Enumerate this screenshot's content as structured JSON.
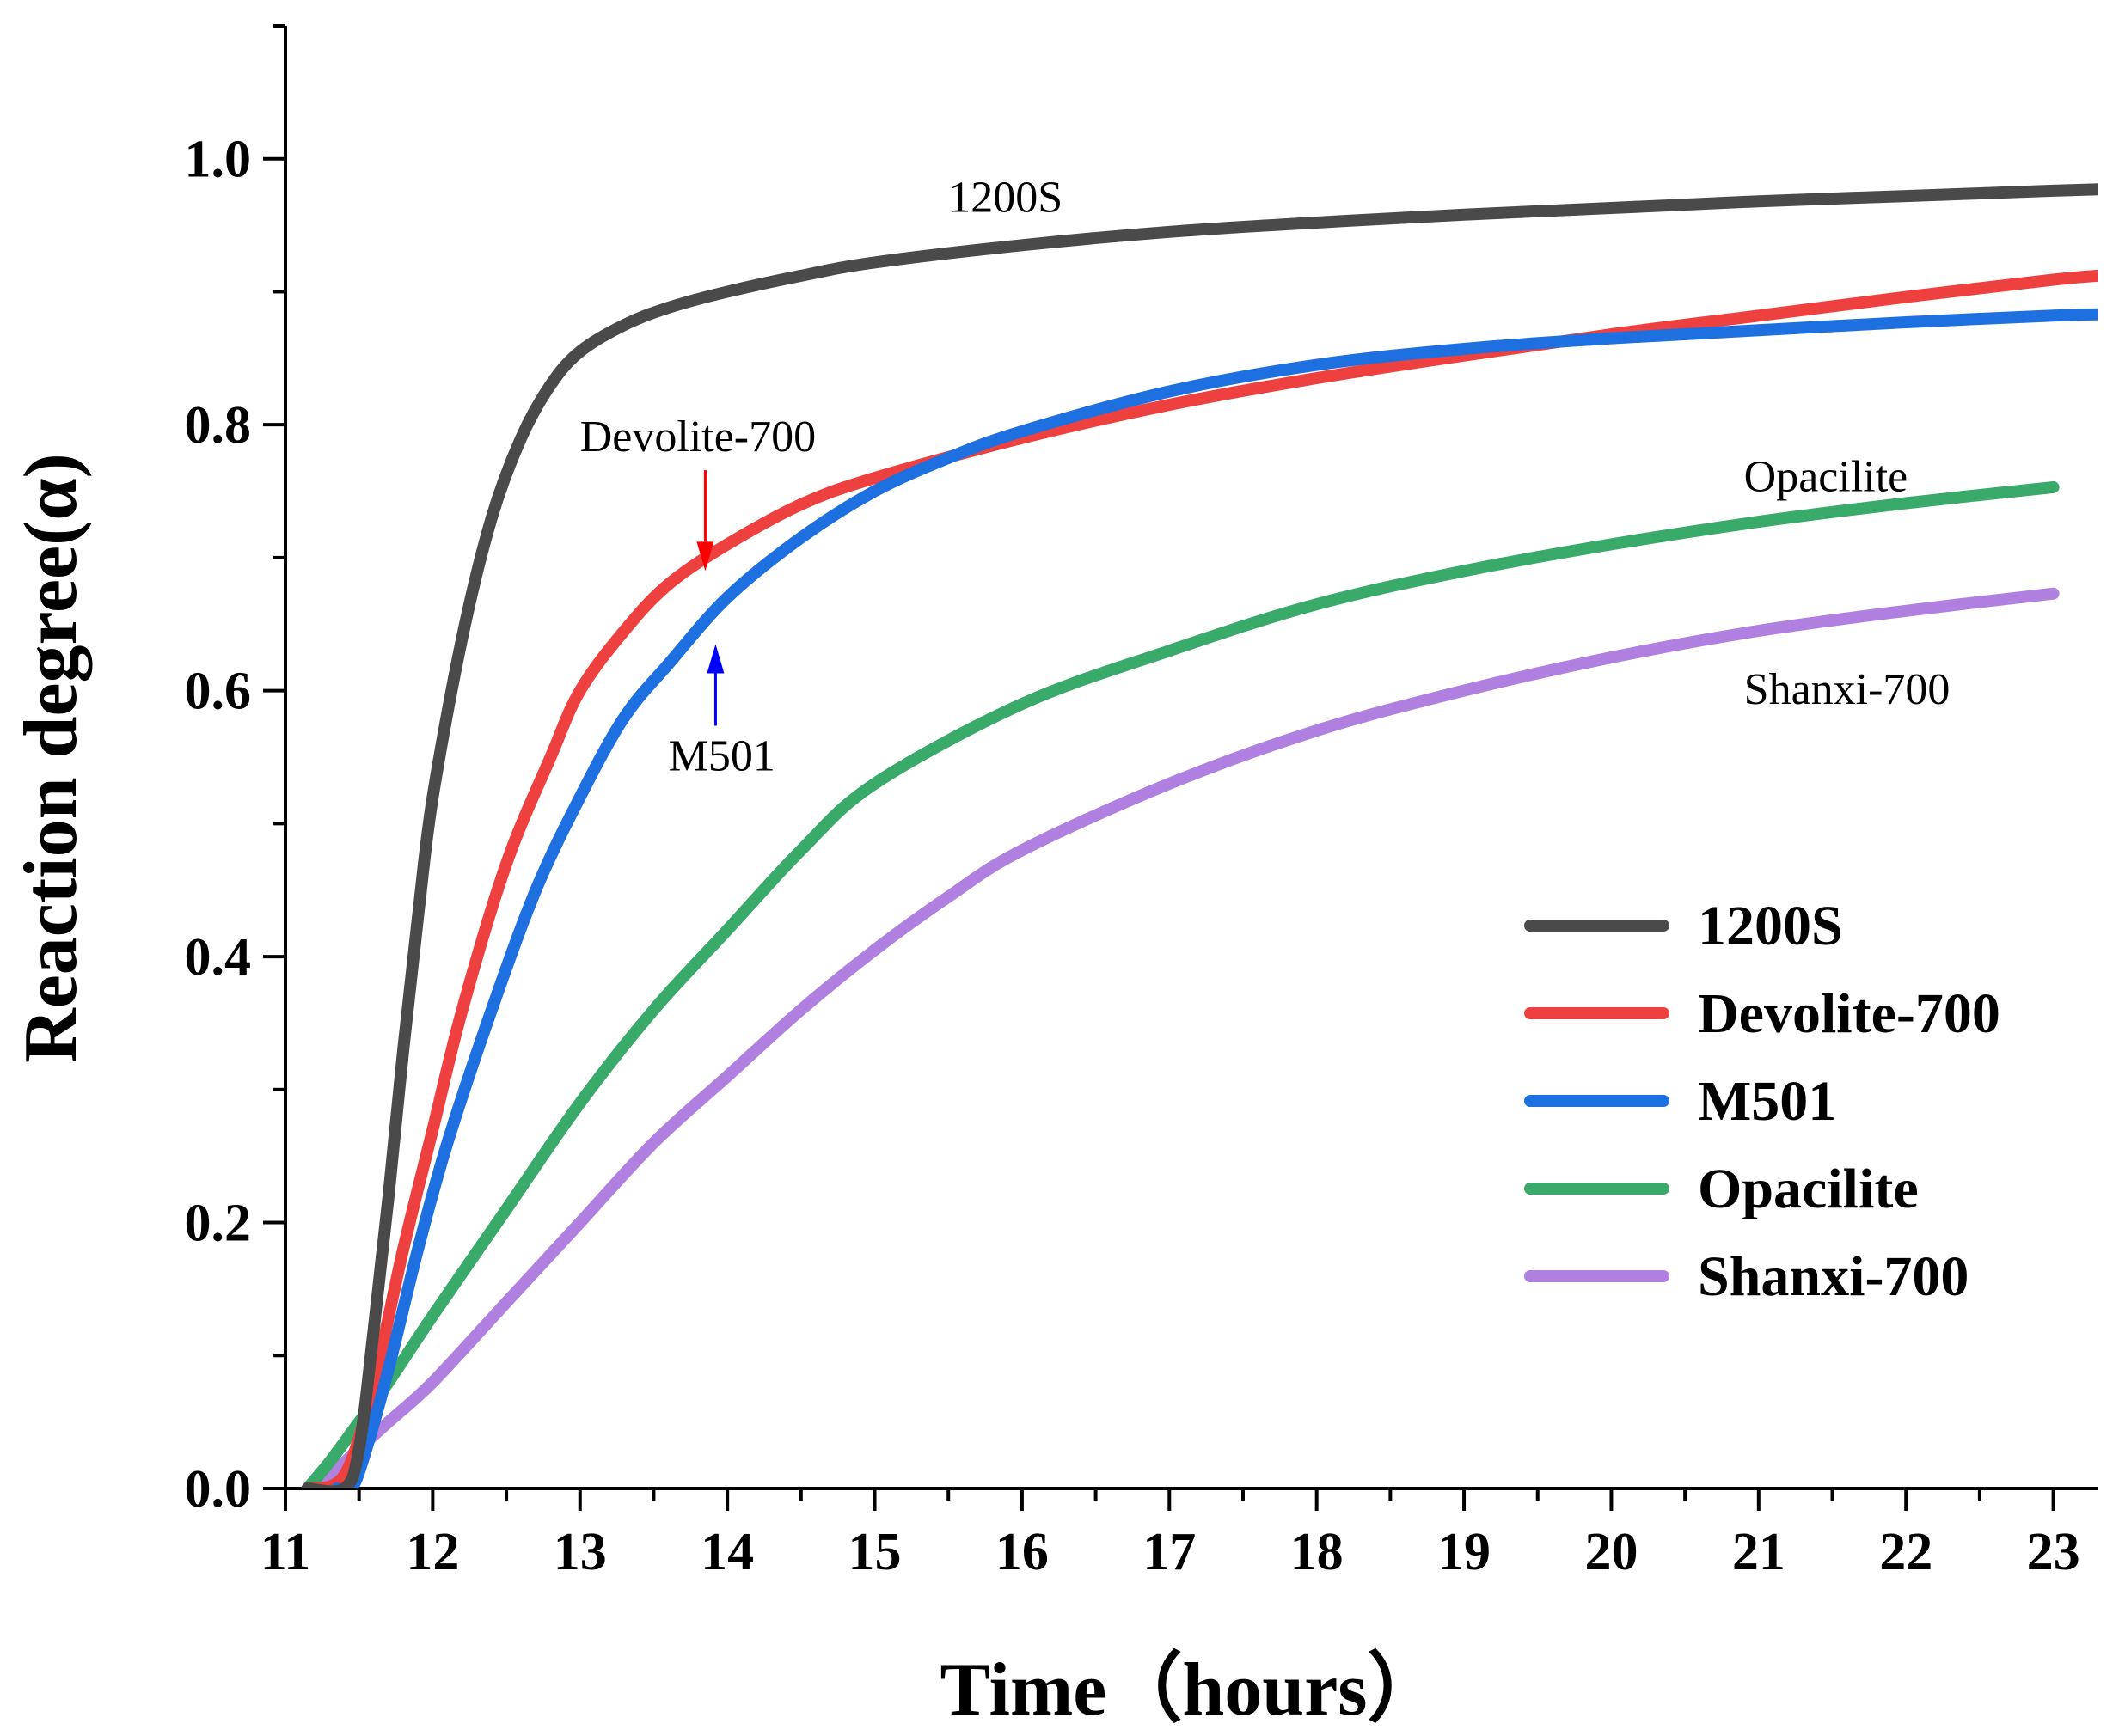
{
  "chart_data": {
    "type": "line",
    "title": "",
    "xlabel": "Time（hours）",
    "ylabel": "Reaction degree(α)",
    "xlim": [
      11,
      23.3
    ],
    "ylim": [
      0,
      1.1
    ],
    "xticks": [
      11,
      12,
      13,
      14,
      15,
      16,
      17,
      18,
      19,
      20,
      21,
      22,
      23
    ],
    "xtick_labels": [
      "11",
      "12",
      "13",
      "14",
      "15",
      "16",
      "17",
      "18",
      "19",
      "20",
      "21",
      "22",
      "23"
    ],
    "yticks": [
      0,
      0.2,
      0.4,
      0.6,
      0.8,
      1.0
    ],
    "ytick_labels": [
      "0.0",
      "0.2",
      "0.4",
      "0.6",
      "0.8",
      "1.0"
    ],
    "grid": false,
    "legend_position": "bottom-right",
    "series": [
      {
        "name": "1200S",
        "color": "#4a4a4a",
        "x": [
          11.15,
          11.4,
          11.5,
          11.6,
          11.7,
          11.8,
          11.9,
          12.0,
          12.2,
          12.4,
          12.6,
          12.8,
          13.0,
          13.3,
          13.6,
          14.0,
          14.5,
          15.0,
          16.0,
          17.0,
          18.0,
          19.0,
          20.0,
          21.0,
          22.0,
          23.0,
          23.3
        ],
        "values": [
          0.0,
          0.0,
          0.03,
          0.12,
          0.22,
          0.33,
          0.43,
          0.52,
          0.64,
          0.73,
          0.79,
          0.83,
          0.855,
          0.875,
          0.888,
          0.9,
          0.912,
          0.922,
          0.935,
          0.945,
          0.952,
          0.958,
          0.963,
          0.968,
          0.972,
          0.976,
          0.977
        ]
      },
      {
        "name": "Devolite-700",
        "color": "#ef4040",
        "x": [
          11.15,
          11.4,
          11.6,
          11.8,
          12.0,
          12.2,
          12.5,
          12.8,
          13.0,
          13.3,
          13.6,
          14.0,
          14.5,
          15.0,
          16.0,
          17.0,
          18.0,
          19.0,
          20.0,
          21.0,
          22.0,
          23.0,
          23.3
        ],
        "values": [
          0.0,
          0.01,
          0.08,
          0.18,
          0.27,
          0.36,
          0.47,
          0.55,
          0.6,
          0.645,
          0.68,
          0.71,
          0.74,
          0.76,
          0.79,
          0.815,
          0.835,
          0.852,
          0.868,
          0.882,
          0.896,
          0.909,
          0.912
        ]
      },
      {
        "name": "M501",
        "color": "#1e6fe0",
        "x": [
          11.35,
          11.45,
          11.55,
          11.7,
          11.9,
          12.1,
          12.4,
          12.7,
          13.0,
          13.3,
          13.6,
          14.0,
          14.5,
          15.0,
          15.5,
          16.0,
          17.0,
          18.0,
          19.0,
          20.0,
          21.0,
          22.0,
          23.0,
          23.3
        ],
        "values": [
          0.0,
          0.0,
          0.03,
          0.09,
          0.18,
          0.26,
          0.36,
          0.45,
          0.52,
          0.58,
          0.62,
          0.67,
          0.715,
          0.75,
          0.775,
          0.795,
          0.825,
          0.845,
          0.857,
          0.865,
          0.871,
          0.877,
          0.882,
          0.883
        ]
      },
      {
        "name": "Opacilite",
        "color": "#3aaa6a",
        "x": [
          11.15,
          11.3,
          11.5,
          11.7,
          12.0,
          12.5,
          13.0,
          13.5,
          14.0,
          14.5,
          15.0,
          16.0,
          17.0,
          18.0,
          19.0,
          20.0,
          21.0,
          22.0,
          23.0
        ],
        "values": [
          0.0,
          0.02,
          0.05,
          0.08,
          0.13,
          0.21,
          0.29,
          0.36,
          0.42,
          0.48,
          0.53,
          0.59,
          0.63,
          0.665,
          0.69,
          0.71,
          0.727,
          0.741,
          0.753
        ]
      },
      {
        "name": "Shanxi-700",
        "color": "#b080e0",
        "x": [
          11.15,
          11.3,
          11.5,
          11.7,
          12.0,
          12.5,
          13.0,
          13.5,
          14.0,
          14.5,
          15.0,
          15.5,
          16.0,
          17.0,
          18.0,
          19.0,
          20.0,
          21.0,
          22.0,
          23.0
        ],
        "values": [
          0.0,
          0.01,
          0.03,
          0.05,
          0.08,
          0.14,
          0.2,
          0.26,
          0.31,
          0.36,
          0.405,
          0.445,
          0.48,
          0.53,
          0.57,
          0.6,
          0.625,
          0.645,
          0.66,
          0.673
        ]
      }
    ],
    "annotations": [
      {
        "label": "1200S",
        "x": 15.5,
        "y": 0.96
      },
      {
        "label": "Devolite-700",
        "x": 13.0,
        "y": 0.78,
        "arrow_to": [
          13.85,
          0.69
        ],
        "arrow_color": "#ff0000"
      },
      {
        "label": "M501",
        "x": 13.6,
        "y": 0.54,
        "arrow_to": [
          13.92,
          0.635
        ],
        "arrow_color": "#0000ff"
      },
      {
        "label": "Opacilite",
        "x": 20.9,
        "y": 0.75
      },
      {
        "label": "Shanxi-700",
        "x": 20.9,
        "y": 0.59
      }
    ]
  }
}
